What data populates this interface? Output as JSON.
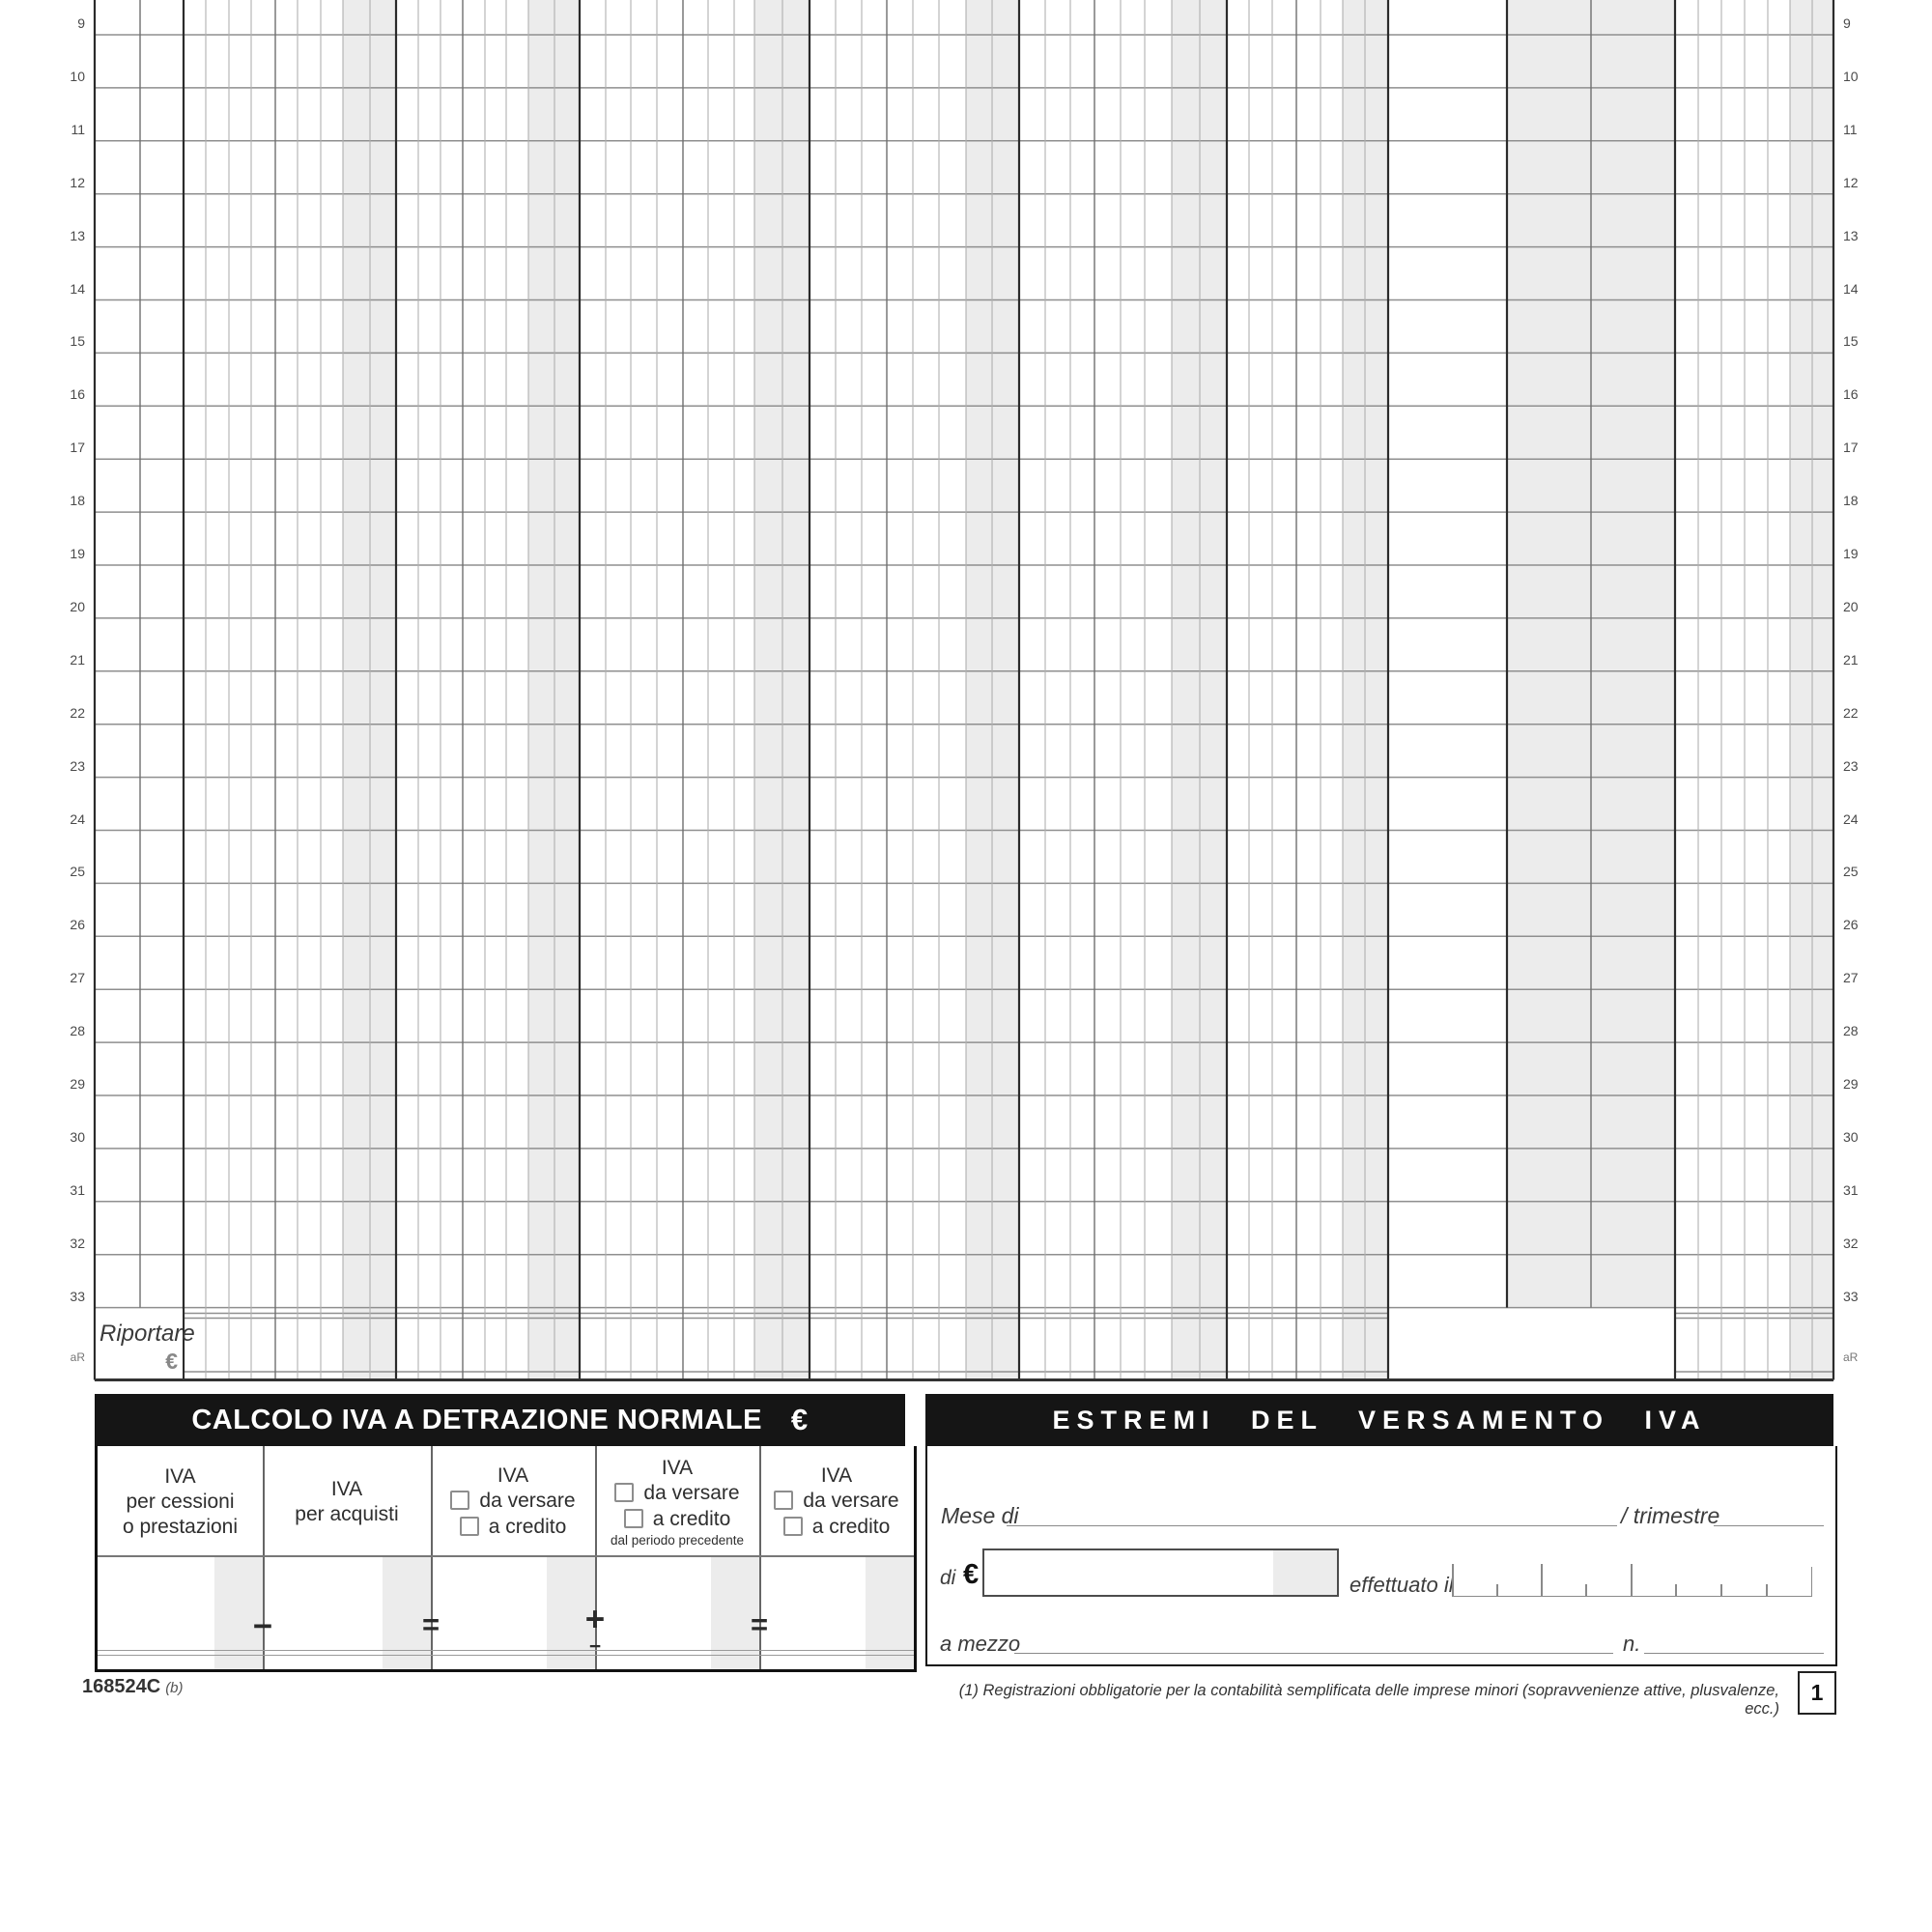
{
  "grid": {
    "row_numbers": [
      "9",
      "10",
      "11",
      "12",
      "13",
      "14",
      "15",
      "16",
      "17",
      "18",
      "19",
      "20",
      "21",
      "22",
      "23",
      "24",
      "25",
      "26",
      "27",
      "28",
      "29",
      "30",
      "31",
      "32",
      "33"
    ],
    "carry_row_label": "aR",
    "riportare": {
      "label": "Riportare",
      "currency": "€"
    }
  },
  "calc_section": {
    "title": "CALCOLO IVA A DETRAZIONE NORMALE",
    "currency": "€",
    "columns": [
      {
        "lines": [
          "IVA",
          "per cessioni",
          "o prestazioni"
        ]
      },
      {
        "lines": [
          "IVA",
          "per acquisti"
        ]
      },
      {
        "title": "IVA",
        "checkboxes": [
          "da versare",
          "a credito"
        ],
        "note": ""
      },
      {
        "title": "IVA",
        "checkboxes": [
          "da versare",
          "a credito"
        ],
        "note": "dal periodo precedente"
      },
      {
        "title": "IVA",
        "checkboxes": [
          "da versare",
          "a credito"
        ],
        "note": ""
      }
    ],
    "operators": [
      {
        "symbol": "−",
        "sub": ""
      },
      {
        "symbol": "=",
        "sub": ""
      },
      {
        "symbol": "+",
        "sub": "−"
      },
      {
        "symbol": "=",
        "sub": ""
      }
    ]
  },
  "estremi_section": {
    "title": "ESTREMI DEL VERSAMENTO IVA",
    "mese_label": "Mese di",
    "trimestre_label": "/ trimestre",
    "di_label": "di",
    "currency": "€",
    "effettuato_label": "effettuato il",
    "mezzo_label": "a mezzo",
    "numero_label": "n."
  },
  "footer": {
    "code": "168524C",
    "code_suffix": "(b)",
    "footnote": "(1) Registrazioni obbligatorie per la contabilità semplificata delle imprese minori (sopravvenienze attive, plusvalenze, ecc.)",
    "page": "1"
  },
  "colors": {
    "band_gray": "#ececec",
    "line_thin": "#b0b0b0",
    "line_row": "#8f8f8f",
    "line_medium": "#6f6f6f",
    "line_heavy": "#2b2b2b",
    "header_bar": "#151515"
  }
}
